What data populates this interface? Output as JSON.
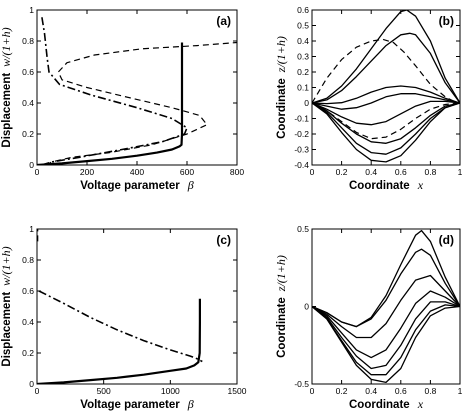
{
  "chart_data": [
    {
      "panel": "(a)",
      "type": "line",
      "xlabel": "Voltage parameter",
      "xlabel_symbol": "β",
      "ylabel": "Displacement",
      "ylabel_symbol": "w/(1+h)",
      "xlim": [
        0,
        800
      ],
      "ylim": [
        0,
        1
      ],
      "xticks": [
        "0",
        "200",
        "400",
        "600",
        "800"
      ],
      "yticks": [
        "0",
        "0.2",
        "0.4",
        "0.6",
        "0.8",
        "1"
      ],
      "series": [
        {
          "style": "solid",
          "width": 2.2,
          "x": [
            0,
            100,
            200,
            300,
            400,
            480,
            540,
            570,
            578,
            580,
            580,
            580
          ],
          "y": [
            0,
            0.01,
            0.025,
            0.04,
            0.06,
            0.08,
            0.1,
            0.12,
            0.13,
            0.2,
            0.5,
            0.79
          ]
        },
        {
          "style": "dashed",
          "width": 1.2,
          "x": [
            35,
            60,
            140,
            290,
            460,
            600,
            680,
            650,
            540,
            380,
            200,
            100,
            85,
            120,
            230,
            420,
            640,
            800
          ],
          "y": [
            0,
            0.02,
            0.05,
            0.08,
            0.13,
            0.2,
            0.26,
            0.32,
            0.37,
            0.43,
            0.5,
            0.55,
            0.6,
            0.66,
            0.71,
            0.75,
            0.77,
            0.79
          ]
        },
        {
          "style": "dashdot",
          "width": 1.6,
          "x": [
            18,
            60,
            170,
            340,
            500,
            590,
            600,
            540,
            400,
            220,
            90,
            48,
            40,
            30,
            18
          ],
          "y": [
            0,
            0.02,
            0.05,
            0.1,
            0.15,
            0.2,
            0.24,
            0.3,
            0.37,
            0.45,
            0.52,
            0.6,
            0.7,
            0.85,
            0.97
          ]
        }
      ]
    },
    {
      "panel": "(b)",
      "type": "line",
      "xlabel": "Coordinate",
      "xlabel_symbol": "x",
      "ylabel": "Coordinate",
      "ylabel_symbol": "z/(1+h)",
      "xlim": [
        0,
        1
      ],
      "ylim": [
        -0.4,
        0.6
      ],
      "xticks": [
        "0",
        "0.2",
        "0.4",
        "0.6",
        "0.8",
        "1"
      ],
      "yticks": [
        "-0.4",
        "-0.3",
        "-0.2",
        "-0.1",
        "0",
        "0.1",
        "0.2",
        "0.3",
        "0.4",
        "0.5",
        "0.6"
      ],
      "series": [
        {
          "style": "solid",
          "width": 1.3,
          "x": [
            0,
            0.1,
            0.2,
            0.3,
            0.4,
            0.5,
            0.6,
            0.64,
            0.7,
            0.8,
            0.9,
            1
          ],
          "y": [
            0,
            0.03,
            0.11,
            0.22,
            0.35,
            0.48,
            0.59,
            0.6,
            0.56,
            0.4,
            0.16,
            0
          ]
        },
        {
          "style": "solid",
          "width": 1.3,
          "x": [
            0,
            0.1,
            0.2,
            0.3,
            0.4,
            0.5,
            0.6,
            0.66,
            0.7,
            0.8,
            0.9,
            1
          ],
          "y": [
            0,
            0.02,
            0.08,
            0.17,
            0.27,
            0.37,
            0.44,
            0.45,
            0.44,
            0.32,
            0.13,
            0
          ]
        },
        {
          "style": "dashed",
          "width": 1.2,
          "x": [
            0,
            0.05,
            0.1,
            0.2,
            0.3,
            0.4,
            0.48,
            0.55,
            0.62,
            0.7,
            0.8,
            0.9,
            0.95,
            1
          ],
          "y": [
            0,
            0.08,
            0.16,
            0.28,
            0.36,
            0.4,
            0.41,
            0.39,
            0.33,
            0.24,
            0.12,
            0.04,
            0.015,
            0
          ]
        },
        {
          "style": "solid",
          "width": 1.3,
          "x": [
            0,
            0.1,
            0.2,
            0.3,
            0.4,
            0.5,
            0.6,
            0.7,
            0.8,
            0.9,
            1
          ],
          "y": [
            0,
            -0.004,
            0.002,
            0.03,
            0.07,
            0.1,
            0.11,
            0.1,
            0.07,
            0.03,
            0
          ]
        },
        {
          "style": "solid",
          "width": 1.3,
          "x": [
            0,
            0.1,
            0.2,
            0.3,
            0.4,
            0.5,
            0.6,
            0.7,
            0.8,
            0.9,
            1
          ],
          "y": [
            0,
            -0.02,
            -0.04,
            -0.03,
            0.0,
            0.04,
            0.06,
            0.06,
            0.04,
            0.02,
            0
          ]
        },
        {
          "style": "solid",
          "width": 1.3,
          "x": [
            0,
            0.1,
            0.2,
            0.3,
            0.4,
            0.5,
            0.6,
            0.7,
            0.8,
            0.9,
            1
          ],
          "y": [
            0,
            -0.04,
            -0.09,
            -0.13,
            -0.14,
            -0.12,
            -0.07,
            -0.02,
            0.01,
            0.01,
            0
          ]
        },
        {
          "style": "dashed",
          "width": 1.2,
          "x": [
            0,
            0.1,
            0.2,
            0.3,
            0.4,
            0.5,
            0.6,
            0.7,
            0.8,
            0.9,
            1
          ],
          "y": [
            0,
            -0.05,
            -0.12,
            -0.19,
            -0.23,
            -0.22,
            -0.17,
            -0.1,
            -0.04,
            -0.01,
            0
          ]
        },
        {
          "style": "solid",
          "width": 1.3,
          "x": [
            0,
            0.1,
            0.2,
            0.3,
            0.4,
            0.5,
            0.6,
            0.7,
            0.8,
            0.9,
            1
          ],
          "y": [
            0,
            -0.05,
            -0.13,
            -0.2,
            -0.25,
            -0.26,
            -0.23,
            -0.16,
            -0.08,
            -0.02,
            0
          ]
        },
        {
          "style": "solid",
          "width": 1.3,
          "x": [
            0,
            0.1,
            0.2,
            0.3,
            0.4,
            0.5,
            0.6,
            0.7,
            0.8,
            0.9,
            1
          ],
          "y": [
            0,
            -0.06,
            -0.16,
            -0.26,
            -0.32,
            -0.33,
            -0.29,
            -0.2,
            -0.1,
            -0.03,
            0
          ]
        },
        {
          "style": "solid",
          "width": 1.3,
          "x": [
            0,
            0.1,
            0.2,
            0.3,
            0.4,
            0.5,
            0.6,
            0.7,
            0.8,
            0.9,
            1
          ],
          "y": [
            0,
            -0.07,
            -0.19,
            -0.3,
            -0.37,
            -0.38,
            -0.34,
            -0.24,
            -0.12,
            -0.03,
            0
          ]
        }
      ]
    },
    {
      "panel": "(c)",
      "type": "line",
      "xlabel": "Voltage parameter",
      "xlabel_symbol": "β",
      "ylabel": "Displacement",
      "ylabel_symbol": "w/(1+h)",
      "xlim": [
        0,
        1500
      ],
      "ylim": [
        0,
        1
      ],
      "xticks": [
        "0",
        "500",
        "1000",
        "1500"
      ],
      "yticks": [
        "0",
        "0.2",
        "0.4",
        "0.6",
        "0.8",
        "1"
      ],
      "series": [
        {
          "style": "solid",
          "width": 2.2,
          "x": [
            0,
            200,
            400,
            600,
            800,
            1000,
            1120,
            1180,
            1210,
            1220,
            1222,
            1222
          ],
          "y": [
            0,
            0.01,
            0.025,
            0.04,
            0.06,
            0.085,
            0.1,
            0.12,
            0.14,
            0.2,
            0.4,
            0.55
          ]
        },
        {
          "style": "dashdot",
          "width": 1.6,
          "x": [
            15,
            200,
            400,
            600,
            800,
            1000,
            1150,
            1210,
            1230,
            1240
          ],
          "y": [
            0.6,
            0.52,
            0.43,
            0.35,
            0.28,
            0.22,
            0.18,
            0.16,
            0.15,
            0.145
          ]
        },
        {
          "style": "dashed",
          "width": 1.2,
          "x": [
            5,
            5
          ],
          "y": [
            0.92,
            1.0
          ]
        }
      ]
    },
    {
      "panel": "(d)",
      "type": "line",
      "xlabel": "Coordinate",
      "xlabel_symbol": "x",
      "ylabel": "Coordinate",
      "ylabel_symbol": "z/(1+h)",
      "xlim": [
        0,
        1
      ],
      "ylim": [
        -0.5,
        0.5
      ],
      "xticks": [
        "0",
        "0.2",
        "0.4",
        "0.6",
        "0.8",
        "1"
      ],
      "yticks": [
        "-0.5",
        "0",
        "0.5"
      ],
      "series": [
        {
          "style": "solid",
          "width": 1.3,
          "x": [
            0,
            0.1,
            0.2,
            0.3,
            0.4,
            0.5,
            0.6,
            0.7,
            0.74,
            0.8,
            0.9,
            1
          ],
          "y": [
            0,
            -0.04,
            -0.1,
            -0.13,
            -0.07,
            0.07,
            0.27,
            0.46,
            0.49,
            0.42,
            0.19,
            0
          ]
        },
        {
          "style": "solid",
          "width": 1.3,
          "x": [
            0,
            0.1,
            0.2,
            0.3,
            0.4,
            0.5,
            0.6,
            0.7,
            0.74,
            0.8,
            0.9,
            1
          ],
          "y": [
            0,
            -0.04,
            -0.1,
            -0.13,
            -0.08,
            0.04,
            0.21,
            0.35,
            0.37,
            0.33,
            0.15,
            0
          ]
        },
        {
          "style": "solid",
          "width": 1.3,
          "x": [
            0,
            0.1,
            0.2,
            0.3,
            0.4,
            0.5,
            0.6,
            0.7,
            0.8,
            0.9,
            1
          ],
          "y": [
            0,
            -0.05,
            -0.13,
            -0.2,
            -0.2,
            -0.11,
            0.04,
            0.17,
            0.2,
            0.1,
            0
          ]
        },
        {
          "style": "solid",
          "width": 1.3,
          "x": [
            0,
            0.1,
            0.2,
            0.3,
            0.4,
            0.5,
            0.6,
            0.7,
            0.8,
            0.9,
            1
          ],
          "y": [
            0,
            -0.06,
            -0.17,
            -0.28,
            -0.33,
            -0.28,
            -0.14,
            0.02,
            0.1,
            0.06,
            0
          ]
        },
        {
          "style": "solid",
          "width": 1.3,
          "x": [
            0,
            0.1,
            0.2,
            0.3,
            0.4,
            0.5,
            0.6,
            0.7,
            0.8,
            0.9,
            1
          ],
          "y": [
            0,
            -0.07,
            -0.2,
            -0.32,
            -0.4,
            -0.38,
            -0.25,
            -0.08,
            0.03,
            0.03,
            0
          ]
        },
        {
          "style": "solid",
          "width": 1.3,
          "x": [
            0,
            0.1,
            0.2,
            0.3,
            0.4,
            0.5,
            0.6,
            0.7,
            0.8,
            0.9,
            1
          ],
          "y": [
            0,
            -0.08,
            -0.22,
            -0.36,
            -0.44,
            -0.44,
            -0.33,
            -0.15,
            -0.03,
            0.01,
            0
          ]
        },
        {
          "style": "solid",
          "width": 1.3,
          "x": [
            0,
            0.1,
            0.2,
            0.3,
            0.4,
            0.5,
            0.6,
            0.7,
            0.8,
            0.9,
            1
          ],
          "y": [
            0,
            -0.08,
            -0.23,
            -0.38,
            -0.47,
            -0.49,
            -0.4,
            -0.2,
            -0.06,
            -0.01,
            0
          ]
        }
      ]
    }
  ]
}
